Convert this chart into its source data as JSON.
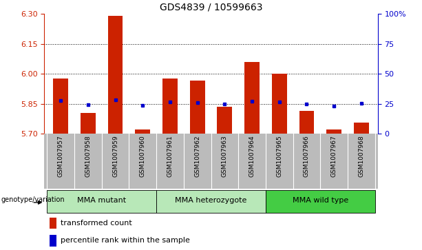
{
  "title": "GDS4839 / 10599663",
  "samples": [
    "GSM1007957",
    "GSM1007958",
    "GSM1007959",
    "GSM1007960",
    "GSM1007961",
    "GSM1007962",
    "GSM1007963",
    "GSM1007964",
    "GSM1007965",
    "GSM1007966",
    "GSM1007967",
    "GSM1007968"
  ],
  "bar_tops": [
    5.975,
    5.805,
    6.29,
    5.72,
    5.975,
    5.965,
    5.835,
    6.06,
    6.0,
    5.815,
    5.72,
    5.755
  ],
  "bar_bottoms": [
    5.7,
    5.7,
    5.7,
    5.7,
    5.7,
    5.7,
    5.7,
    5.7,
    5.7,
    5.7,
    5.7,
    5.7
  ],
  "blue_dots": [
    5.865,
    5.845,
    5.87,
    5.843,
    5.858,
    5.857,
    5.848,
    5.862,
    5.858,
    5.848,
    5.84,
    5.852
  ],
  "ylim": [
    5.7,
    6.3
  ],
  "yticks_left": [
    5.7,
    5.85,
    6.0,
    6.15,
    6.3
  ],
  "yticks_right": [
    0,
    25,
    50,
    75,
    100
  ],
  "dotted_lines": [
    5.85,
    6.0,
    6.15
  ],
  "group_defs": [
    {
      "label": "MMA mutant",
      "start": 0,
      "end": 3,
      "color": "#b8e8b8"
    },
    {
      "label": "MMA heterozygote",
      "start": 4,
      "end": 7,
      "color": "#b8e8b8"
    },
    {
      "label": "MMA wild type",
      "start": 8,
      "end": 11,
      "color": "#44cc44"
    }
  ],
  "bar_color": "#cc2200",
  "dot_color": "#0000cc",
  "bg_color": "#bbbbbb",
  "plot_bg": "#ffffff",
  "group_label": "genotype/variation",
  "legend_bar": "transformed count",
  "legend_dot": "percentile rank within the sample",
  "left_axis_color": "#cc2200",
  "right_axis_color": "#0000cc",
  "bar_width": 0.55
}
